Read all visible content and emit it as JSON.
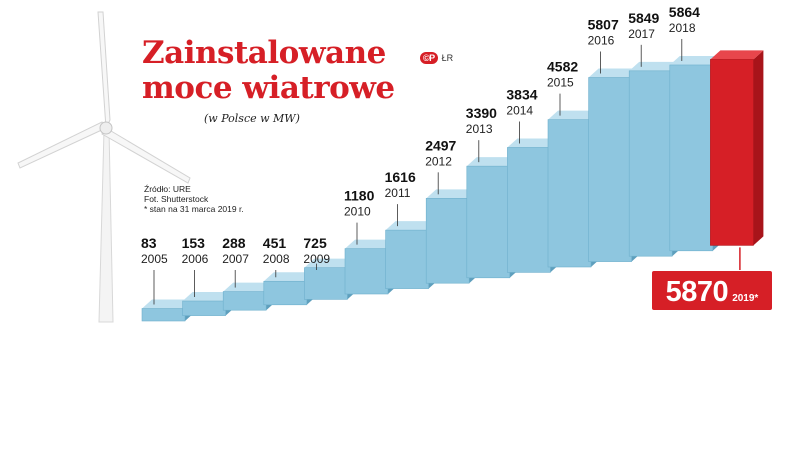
{
  "header": {
    "title_line1": "Zainstalowane",
    "title_line2": "moce wiatrowe",
    "subtitle": "(w Polsce w MW)"
  },
  "copyright": {
    "badge": "©P",
    "credit": "ŁR"
  },
  "source": {
    "line1": "Źródło: URE",
    "line2": "Fot. Shutterstock",
    "line3": "* stan na 31 marca 2019 r."
  },
  "highlight": {
    "value": "5870",
    "year": "2019*"
  },
  "colors": {
    "title": "#d61f26",
    "bar_front": "#8ec6df",
    "bar_top": "#bfe0ef",
    "bar_side": "#5e9fbd",
    "highlight_front": "#d61f26",
    "highlight_top": "#e8464c",
    "highlight_side": "#a8141a"
  },
  "chart_data": {
    "type": "bar",
    "categories": [
      "2005",
      "2006",
      "2007",
      "2008",
      "2009",
      "2010",
      "2011",
      "2012",
      "2013",
      "2014",
      "2015",
      "2016",
      "2017",
      "2018",
      "2019*"
    ],
    "values": [
      83,
      153,
      288,
      451,
      725,
      1180,
      1616,
      2497,
      3390,
      3834,
      4582,
      5807,
      5849,
      5864,
      5870
    ],
    "value_labels": [
      "83",
      "153",
      "288",
      "451",
      "725",
      "1180",
      "1616",
      "2497",
      "3390",
      "3834",
      "4582",
      "5807",
      "5849",
      "5864",
      ""
    ],
    "highlight_index": 14,
    "title": "Zainstalowane moce wiatrowe",
    "subtitle": "(w Polsce w MW)",
    "xlabel": "",
    "ylabel": "",
    "grid": false,
    "legend": "none"
  }
}
